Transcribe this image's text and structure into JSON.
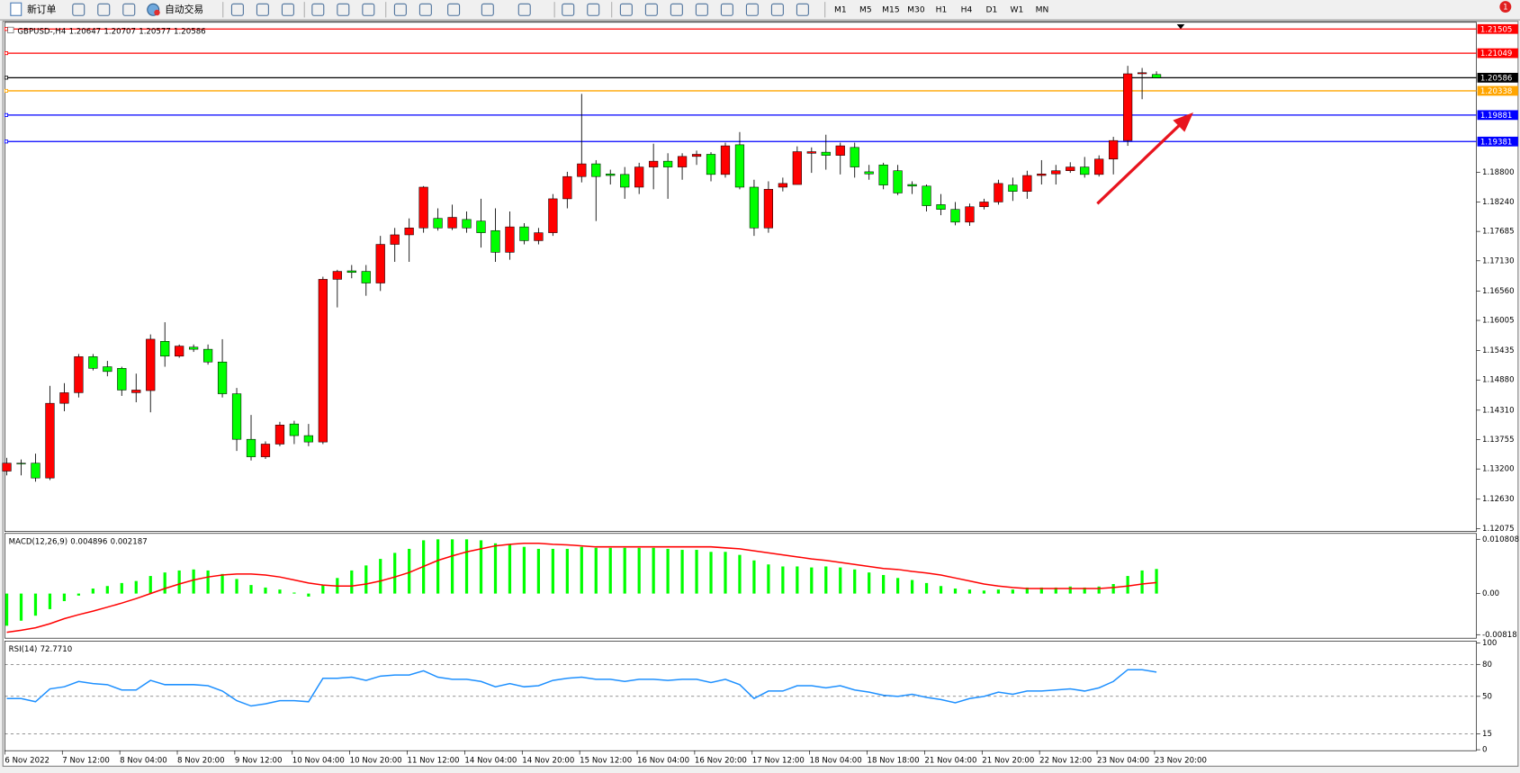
{
  "toolbar": {
    "new_order": "新订单",
    "auto_trading": "自动交易",
    "timeframes": [
      "M1",
      "M5",
      "M15",
      "M30",
      "H1",
      "H4",
      "D1",
      "W1",
      "MN"
    ],
    "badge": "1"
  },
  "chart_data": [
    {
      "type": "candlestick",
      "title": "GBPUSD-,H4",
      "categories": [
        "6 Nov 2022",
        null,
        null,
        null,
        "7 Nov 12:00",
        null,
        null,
        null,
        "8 Nov 04:00",
        null,
        null,
        null,
        "8 Nov 20:00",
        null,
        null,
        null,
        "9 Nov 12:00",
        null,
        null,
        null,
        "10 Nov 04:00",
        null,
        null,
        null,
        "10 Nov 20:00",
        null,
        null,
        null,
        "11 Nov 12:00",
        null,
        null,
        null,
        "14 Nov 04:00",
        null,
        null,
        null,
        "14 Nov 20:00",
        null,
        null,
        null,
        "15 Nov 12:00",
        null,
        null,
        null,
        "16 Nov 04:00",
        null,
        null,
        null,
        "16 Nov 20:00",
        null,
        null,
        null,
        "17 Nov 12:00",
        null,
        null,
        null,
        "18 Nov 04:00",
        null,
        null,
        null,
        "18 Nov 18:00",
        null,
        null,
        null,
        "21 Nov 04:00",
        null,
        null,
        null,
        "21 Nov 20:00",
        null,
        null,
        null,
        "22 Nov 12:00",
        null,
        null,
        null,
        "23 Nov 04:00",
        null,
        null,
        null,
        "23 Nov 20:00"
      ],
      "open": [
        1.1316,
        1.1331,
        1.1331,
        1.1303,
        1.1444,
        1.1464,
        1.1532,
        1.1513,
        1.151,
        1.1464,
        1.1468,
        1.1561,
        1.1533,
        1.155,
        1.1546,
        1.1522,
        1.1462,
        1.1376,
        1.1343,
        1.1367,
        1.1405,
        1.1383,
        1.1371,
        1.1678,
        1.1694,
        1.1693,
        1.1671,
        1.1744,
        1.1762,
        1.1775,
        1.1793,
        1.1775,
        1.1791,
        1.1788,
        1.177,
        1.1729,
        1.1777,
        1.1751,
        1.1766,
        1.183,
        1.1872,
        1.1896,
        1.1877,
        1.1876,
        1.1852,
        1.189,
        1.1901,
        1.189,
        1.191,
        1.1914,
        1.1876,
        1.1932,
        1.1852,
        1.1775,
        1.1852,
        1.1857,
        1.1916,
        1.1918,
        1.1912,
        1.1927,
        1.1881,
        1.1894,
        1.1883,
        1.1857,
        1.1854,
        1.1819,
        1.181,
        1.1786,
        1.1815,
        1.1824,
        1.1856,
        1.1844,
        1.1874,
        1.1877,
        1.1883,
        1.189,
        1.1876,
        1.1905,
        1.194,
        1.2066,
        1.20647
      ],
      "high": [
        1.1341,
        1.1338,
        1.1349,
        1.1477,
        1.1482,
        1.1537,
        1.1537,
        1.1524,
        1.1513,
        1.15,
        1.1574,
        1.1597,
        1.1555,
        1.1555,
        1.1555,
        1.1565,
        1.1473,
        1.1422,
        1.1372,
        1.1409,
        1.1411,
        1.1405,
        1.1683,
        1.1696,
        1.1705,
        1.1705,
        1.176,
        1.1775,
        1.1793,
        1.1854,
        1.1812,
        1.1819,
        1.1806,
        1.183,
        1.1812,
        1.1806,
        1.1784,
        1.1775,
        1.1839,
        1.1881,
        1.2028,
        1.1903,
        1.1885,
        1.189,
        1.1898,
        1.1934,
        1.1916,
        1.1916,
        1.1921,
        1.1918,
        1.1936,
        1.1956,
        1.1866,
        1.1863,
        1.187,
        1.1929,
        1.1927,
        1.1951,
        1.1936,
        1.1936,
        1.1894,
        1.1898,
        1.1894,
        1.1863,
        1.1857,
        1.1839,
        1.1824,
        1.1821,
        1.183,
        1.1866,
        1.187,
        1.1883,
        1.1903,
        1.1894,
        1.1899,
        1.1909,
        1.1912,
        1.1947,
        1.2081,
        1.2077,
        1.20707
      ],
      "low": [
        1.1308,
        1.1308,
        1.1296,
        1.1299,
        1.1429,
        1.1455,
        1.1506,
        1.1495,
        1.1458,
        1.1446,
        1.1427,
        1.1513,
        1.153,
        1.1541,
        1.1517,
        1.1455,
        1.1354,
        1.1336,
        1.1339,
        1.1363,
        1.1367,
        1.1363,
        1.1367,
        1.1625,
        1.168,
        1.1647,
        1.1656,
        1.1711,
        1.1711,
        1.1766,
        1.177,
        1.1771,
        1.1766,
        1.1738,
        1.1711,
        1.1715,
        1.1744,
        1.1744,
        1.176,
        1.1812,
        1.1861,
        1.1788,
        1.1857,
        1.183,
        1.1839,
        1.1848,
        1.183,
        1.1866,
        1.1894,
        1.1863,
        1.187,
        1.1848,
        1.176,
        1.1766,
        1.1844,
        1.1857,
        1.1879,
        1.1885,
        1.1876,
        1.187,
        1.1866,
        1.1848,
        1.1837,
        1.1839,
        1.1806,
        1.1799,
        1.178,
        1.1779,
        1.181,
        1.1819,
        1.1826,
        1.183,
        1.1857,
        1.1857,
        1.1879,
        1.187,
        1.1872,
        1.1876,
        1.193,
        1.2018,
        1.20577
      ],
      "close": [
        1.1331,
        1.133,
        1.1303,
        1.1444,
        1.1464,
        1.1532,
        1.151,
        1.1504,
        1.1469,
        1.1469,
        1.1565,
        1.1533,
        1.1552,
        1.1546,
        1.1522,
        1.1462,
        1.1376,
        1.1343,
        1.1367,
        1.1403,
        1.1383,
        1.1371,
        1.1678,
        1.1693,
        1.1691,
        1.1671,
        1.1744,
        1.1762,
        1.1775,
        1.1852,
        1.1775,
        1.1795,
        1.1775,
        1.1766,
        1.1729,
        1.1777,
        1.1751,
        1.1766,
        1.183,
        1.1872,
        1.1896,
        1.1872,
        1.1874,
        1.1852,
        1.189,
        1.1901,
        1.189,
        1.191,
        1.1914,
        1.1876,
        1.193,
        1.1852,
        1.1775,
        1.1848,
        1.1859,
        1.1919,
        1.1919,
        1.1912,
        1.193,
        1.189,
        1.1877,
        1.1856,
        1.1841,
        1.1854,
        1.1817,
        1.181,
        1.1786,
        1.1815,
        1.1824,
        1.1859,
        1.1844,
        1.1874,
        1.1877,
        1.1883,
        1.189,
        1.1876,
        1.1905,
        1.194,
        1.2066,
        1.2068,
        1.20586
      ],
      "up_color": "#ff0000",
      "down_color": "#00ff00",
      "ylim": [
        1.1202,
        1.2165
      ],
      "yticks": [
        {
          "value": 1.188,
          "label": "1.18800"
        },
        {
          "value": 1.1824,
          "label": "1.18240"
        },
        1.17685,
        {
          "value": 1.1713,
          "label": "1.17130"
        },
        {
          "value": 1.1656,
          "label": "1.16560"
        },
        1.16005,
        1.15435,
        {
          "value": 1.1488,
          "label": "1.14880"
        },
        {
          "value": 1.1431,
          "label": "1.14310"
        },
        1.13755,
        {
          "value": 1.132,
          "label": "1.13200"
        },
        {
          "value": 1.1263,
          "label": "1.12630"
        },
        1.12075
      ],
      "hlines": [
        {
          "value": 1.21505,
          "color": "#ff0000"
        },
        {
          "value": 1.21049,
          "color": "#ff0000"
        },
        {
          "value": 1.20586,
          "color": "#000000"
        },
        {
          "value": 1.20338,
          "color": "#ffa500"
        },
        {
          "value": 1.19881,
          "color": "#0000ff"
        },
        {
          "value": 1.19381,
          "color": "#0000ff"
        }
      ]
    },
    {
      "type": "macd",
      "title": "MACD(12,26,9)",
      "series": [
        {
          "kind": "histogram",
          "color": "#00ff00",
          "values": [
            -0.0064,
            -0.0054,
            -0.0044,
            -0.0031,
            -0.0015,
            -0.0004,
            0.001,
            0.0015,
            0.0021,
            0.0025,
            0.0035,
            0.0042,
            0.0046,
            0.0048,
            0.0046,
            0.0039,
            0.0029,
            0.0017,
            0.0012,
            0.0008,
            0.0002,
            -0.0006,
            0.0017,
            0.0031,
            0.0046,
            0.0056,
            0.0069,
            0.0081,
            0.0089,
            0.0106,
            0.0108,
            0.0108,
            0.0108,
            0.0106,
            0.01,
            0.0098,
            0.0093,
            0.0089,
            0.0089,
            0.0089,
            0.0093,
            0.0091,
            0.0091,
            0.0091,
            0.0091,
            0.0091,
            0.0089,
            0.0087,
            0.0087,
            0.0083,
            0.0083,
            0.0077,
            0.0066,
            0.0058,
            0.0054,
            0.0054,
            0.0052,
            0.0054,
            0.0052,
            0.0048,
            0.0042,
            0.0037,
            0.0031,
            0.0027,
            0.0021,
            0.0015,
            0.001,
            0.0008,
            0.0006,
            0.0008,
            0.0008,
            0.0012,
            0.0012,
            0.0012,
            0.0014,
            0.0012,
            0.0014,
            0.0019,
            0.0035,
            0.0046,
            0.004896
          ]
        },
        {
          "kind": "line",
          "color": "#ff0000",
          "values": [
            -0.0077,
            -0.0073,
            -0.0068,
            -0.006,
            -0.005,
            -0.0042,
            -0.0035,
            -0.0027,
            -0.0019,
            -0.001,
            0.0,
            0.001,
            0.0019,
            0.0027,
            0.0033,
            0.0037,
            0.0039,
            0.0039,
            0.0037,
            0.0033,
            0.0027,
            0.0021,
            0.0017,
            0.0015,
            0.0015,
            0.0019,
            0.0025,
            0.0033,
            0.0042,
            0.0054,
            0.0066,
            0.0075,
            0.0083,
            0.0089,
            0.0095,
            0.0098,
            0.01,
            0.01,
            0.0098,
            0.0097,
            0.0095,
            0.0093,
            0.0093,
            0.0093,
            0.0093,
            0.0093,
            0.0093,
            0.0093,
            0.0093,
            0.0093,
            0.0091,
            0.0089,
            0.0085,
            0.0081,
            0.0077,
            0.0073,
            0.0069,
            0.0066,
            0.0062,
            0.0058,
            0.0054,
            0.005,
            0.0048,
            0.0044,
            0.0041,
            0.0037,
            0.0031,
            0.0025,
            0.0019,
            0.0015,
            0.0012,
            0.001,
            0.001,
            0.001,
            0.001,
            0.001,
            0.001,
            0.0012,
            0.0015,
            0.0019,
            0.002187
          ]
        }
      ],
      "ylim": [
        -0.00888,
        0.01197
      ],
      "yticks": [
        0.010808,
        {
          "value": 0,
          "label": "0.00"
        },
        -0.00818
      ]
    },
    {
      "type": "line",
      "title": "RSI(14)",
      "series": [
        {
          "color": "#1e90ff",
          "values": [
            48,
            48,
            45,
            57,
            59,
            64,
            62,
            61,
            56,
            56,
            65,
            61,
            61,
            61,
            60,
            55,
            46,
            41,
            43,
            46,
            46,
            45,
            67,
            67,
            68,
            65,
            69,
            70,
            70,
            74,
            68,
            66,
            66,
            64,
            59,
            62,
            59,
            60,
            65,
            67,
            68,
            66,
            66,
            64,
            66,
            66,
            65,
            66,
            66,
            63,
            66,
            61,
            48,
            55,
            55,
            60,
            60,
            58,
            60,
            56,
            54,
            51,
            50,
            52,
            49,
            47,
            44,
            48,
            50,
            54,
            52,
            55,
            55,
            56,
            57,
            55,
            58,
            64,
            75,
            75,
            72.771
          ],
          "value_labels": [
            null,
            null,
            null,
            null,
            null,
            null,
            null,
            null,
            null,
            null,
            null,
            null,
            null,
            null,
            null,
            null,
            null,
            null,
            null,
            null,
            null,
            null,
            null,
            null,
            null,
            null,
            null,
            null,
            null,
            null,
            null,
            null,
            null,
            null,
            null,
            null,
            null,
            null,
            null,
            null,
            null,
            null,
            null,
            null,
            null,
            null,
            null,
            null,
            null,
            null,
            null,
            null,
            null,
            null,
            null,
            null,
            null,
            null,
            null,
            null,
            null,
            null,
            null,
            null,
            null,
            null,
            null,
            null,
            null,
            null,
            null,
            null,
            null,
            null,
            null,
            null,
            null,
            null,
            null,
            null,
            "72.7710"
          ]
        }
      ],
      "ylim": [
        0,
        100
      ],
      "yticks": [
        100,
        80,
        50,
        15,
        0
      ]
    }
  ]
}
